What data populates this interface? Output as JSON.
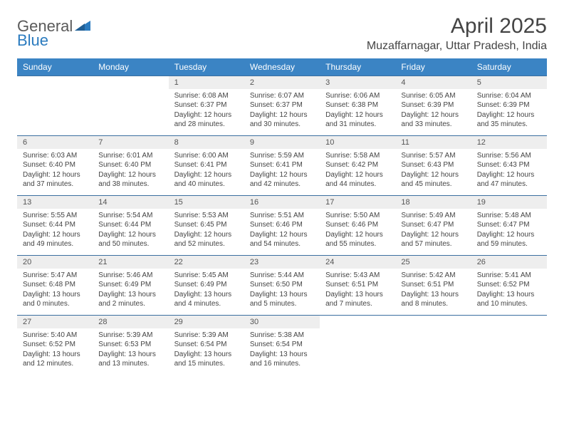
{
  "brand": {
    "general": "General",
    "blue": "Blue"
  },
  "title": "April 2025",
  "location": "Muzaffarnagar, Uttar Pradesh, India",
  "colors": {
    "header_bg": "#3b84c4",
    "header_text": "#ffffff",
    "daynum_bg": "#eeeeee",
    "border": "#3b6fa0",
    "text": "#444444",
    "logo_gray": "#5a5a5a",
    "logo_blue": "#2b7bbf"
  },
  "weekdays": [
    "Sunday",
    "Monday",
    "Tuesday",
    "Wednesday",
    "Thursday",
    "Friday",
    "Saturday"
  ],
  "weeks": [
    [
      null,
      null,
      {
        "n": "1",
        "sr": "Sunrise: 6:08 AM",
        "ss": "Sunset: 6:37 PM",
        "dl": "Daylight: 12 hours and 28 minutes."
      },
      {
        "n": "2",
        "sr": "Sunrise: 6:07 AM",
        "ss": "Sunset: 6:37 PM",
        "dl": "Daylight: 12 hours and 30 minutes."
      },
      {
        "n": "3",
        "sr": "Sunrise: 6:06 AM",
        "ss": "Sunset: 6:38 PM",
        "dl": "Daylight: 12 hours and 31 minutes."
      },
      {
        "n": "4",
        "sr": "Sunrise: 6:05 AM",
        "ss": "Sunset: 6:39 PM",
        "dl": "Daylight: 12 hours and 33 minutes."
      },
      {
        "n": "5",
        "sr": "Sunrise: 6:04 AM",
        "ss": "Sunset: 6:39 PM",
        "dl": "Daylight: 12 hours and 35 minutes."
      }
    ],
    [
      {
        "n": "6",
        "sr": "Sunrise: 6:03 AM",
        "ss": "Sunset: 6:40 PM",
        "dl": "Daylight: 12 hours and 37 minutes."
      },
      {
        "n": "7",
        "sr": "Sunrise: 6:01 AM",
        "ss": "Sunset: 6:40 PM",
        "dl": "Daylight: 12 hours and 38 minutes."
      },
      {
        "n": "8",
        "sr": "Sunrise: 6:00 AM",
        "ss": "Sunset: 6:41 PM",
        "dl": "Daylight: 12 hours and 40 minutes."
      },
      {
        "n": "9",
        "sr": "Sunrise: 5:59 AM",
        "ss": "Sunset: 6:41 PM",
        "dl": "Daylight: 12 hours and 42 minutes."
      },
      {
        "n": "10",
        "sr": "Sunrise: 5:58 AM",
        "ss": "Sunset: 6:42 PM",
        "dl": "Daylight: 12 hours and 44 minutes."
      },
      {
        "n": "11",
        "sr": "Sunrise: 5:57 AM",
        "ss": "Sunset: 6:43 PM",
        "dl": "Daylight: 12 hours and 45 minutes."
      },
      {
        "n": "12",
        "sr": "Sunrise: 5:56 AM",
        "ss": "Sunset: 6:43 PM",
        "dl": "Daylight: 12 hours and 47 minutes."
      }
    ],
    [
      {
        "n": "13",
        "sr": "Sunrise: 5:55 AM",
        "ss": "Sunset: 6:44 PM",
        "dl": "Daylight: 12 hours and 49 minutes."
      },
      {
        "n": "14",
        "sr": "Sunrise: 5:54 AM",
        "ss": "Sunset: 6:44 PM",
        "dl": "Daylight: 12 hours and 50 minutes."
      },
      {
        "n": "15",
        "sr": "Sunrise: 5:53 AM",
        "ss": "Sunset: 6:45 PM",
        "dl": "Daylight: 12 hours and 52 minutes."
      },
      {
        "n": "16",
        "sr": "Sunrise: 5:51 AM",
        "ss": "Sunset: 6:46 PM",
        "dl": "Daylight: 12 hours and 54 minutes."
      },
      {
        "n": "17",
        "sr": "Sunrise: 5:50 AM",
        "ss": "Sunset: 6:46 PM",
        "dl": "Daylight: 12 hours and 55 minutes."
      },
      {
        "n": "18",
        "sr": "Sunrise: 5:49 AM",
        "ss": "Sunset: 6:47 PM",
        "dl": "Daylight: 12 hours and 57 minutes."
      },
      {
        "n": "19",
        "sr": "Sunrise: 5:48 AM",
        "ss": "Sunset: 6:47 PM",
        "dl": "Daylight: 12 hours and 59 minutes."
      }
    ],
    [
      {
        "n": "20",
        "sr": "Sunrise: 5:47 AM",
        "ss": "Sunset: 6:48 PM",
        "dl": "Daylight: 13 hours and 0 minutes."
      },
      {
        "n": "21",
        "sr": "Sunrise: 5:46 AM",
        "ss": "Sunset: 6:49 PM",
        "dl": "Daylight: 13 hours and 2 minutes."
      },
      {
        "n": "22",
        "sr": "Sunrise: 5:45 AM",
        "ss": "Sunset: 6:49 PM",
        "dl": "Daylight: 13 hours and 4 minutes."
      },
      {
        "n": "23",
        "sr": "Sunrise: 5:44 AM",
        "ss": "Sunset: 6:50 PM",
        "dl": "Daylight: 13 hours and 5 minutes."
      },
      {
        "n": "24",
        "sr": "Sunrise: 5:43 AM",
        "ss": "Sunset: 6:51 PM",
        "dl": "Daylight: 13 hours and 7 minutes."
      },
      {
        "n": "25",
        "sr": "Sunrise: 5:42 AM",
        "ss": "Sunset: 6:51 PM",
        "dl": "Daylight: 13 hours and 8 minutes."
      },
      {
        "n": "26",
        "sr": "Sunrise: 5:41 AM",
        "ss": "Sunset: 6:52 PM",
        "dl": "Daylight: 13 hours and 10 minutes."
      }
    ],
    [
      {
        "n": "27",
        "sr": "Sunrise: 5:40 AM",
        "ss": "Sunset: 6:52 PM",
        "dl": "Daylight: 13 hours and 12 minutes."
      },
      {
        "n": "28",
        "sr": "Sunrise: 5:39 AM",
        "ss": "Sunset: 6:53 PM",
        "dl": "Daylight: 13 hours and 13 minutes."
      },
      {
        "n": "29",
        "sr": "Sunrise: 5:39 AM",
        "ss": "Sunset: 6:54 PM",
        "dl": "Daylight: 13 hours and 15 minutes."
      },
      {
        "n": "30",
        "sr": "Sunrise: 5:38 AM",
        "ss": "Sunset: 6:54 PM",
        "dl": "Daylight: 13 hours and 16 minutes."
      },
      null,
      null,
      null
    ]
  ]
}
